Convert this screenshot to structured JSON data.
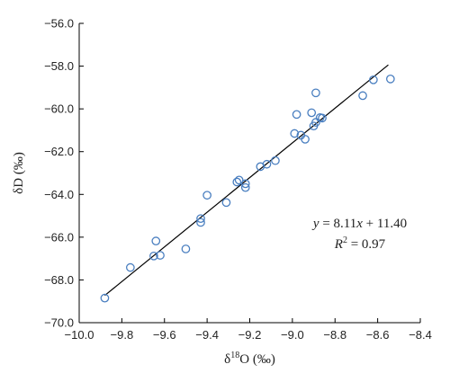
{
  "chart_data": {
    "type": "scatter",
    "title": "",
    "xlabel": {
      "prefix": "δ",
      "sup": "18",
      "suffix": "O (‰)"
    },
    "ylabel": "δD (‰)",
    "xlim": [
      -10.0,
      -8.4
    ],
    "ylim": [
      -70.0,
      -56.0
    ],
    "x_ticks": [
      -10.0,
      -9.8,
      -9.6,
      -9.4,
      -9.2,
      -9.0,
      -8.8,
      -8.6,
      -8.4
    ],
    "y_ticks": [
      -70.0,
      -68.0,
      -66.0,
      -64.0,
      -62.0,
      -60.0,
      -58.0,
      -56.0
    ],
    "x_tick_labels": [
      "−10.0",
      "−9.8",
      "−9.6",
      "−9.4",
      "−9.2",
      "−9.0",
      "−8.8",
      "−8.6",
      "−8.4"
    ],
    "y_tick_labels": [
      "−70.0",
      "−68.0",
      "−66.0",
      "−64.0",
      "−62.0",
      "−60.0",
      "−58.0",
      "−56.0"
    ],
    "grid": false,
    "marker_color": "#4a7fc0",
    "line_color": "#000000",
    "points": [
      {
        "x": -9.88,
        "y": -68.85
      },
      {
        "x": -9.76,
        "y": -67.42
      },
      {
        "x": -9.65,
        "y": -66.88
      },
      {
        "x": -9.62,
        "y": -66.85
      },
      {
        "x": -9.64,
        "y": -66.18
      },
      {
        "x": -9.5,
        "y": -66.55
      },
      {
        "x": -9.43,
        "y": -65.13
      },
      {
        "x": -9.43,
        "y": -65.31
      },
      {
        "x": -9.4,
        "y": -64.04
      },
      {
        "x": -9.31,
        "y": -64.38
      },
      {
        "x": -9.26,
        "y": -63.42
      },
      {
        "x": -9.25,
        "y": -63.33
      },
      {
        "x": -9.22,
        "y": -63.5
      },
      {
        "x": -9.22,
        "y": -63.68
      },
      {
        "x": -9.15,
        "y": -62.7
      },
      {
        "x": -9.12,
        "y": -62.59
      },
      {
        "x": -9.08,
        "y": -62.42
      },
      {
        "x": -8.99,
        "y": -61.15
      },
      {
        "x": -8.96,
        "y": -61.23
      },
      {
        "x": -8.94,
        "y": -61.42
      },
      {
        "x": -8.98,
        "y": -60.26
      },
      {
        "x": -8.91,
        "y": -60.18
      },
      {
        "x": -8.9,
        "y": -60.8
      },
      {
        "x": -8.89,
        "y": -60.63
      },
      {
        "x": -8.87,
        "y": -60.41
      },
      {
        "x": -8.86,
        "y": -60.43
      },
      {
        "x": -8.89,
        "y": -59.25
      },
      {
        "x": -8.67,
        "y": -59.38
      },
      {
        "x": -8.62,
        "y": -58.64
      },
      {
        "x": -8.54,
        "y": -58.6
      }
    ],
    "trendline": {
      "slope": 8.11,
      "intercept": 11.4,
      "x_range": [
        -9.88,
        -8.55
      ]
    },
    "annotation": {
      "equation": {
        "y": "y",
        "eq": " = 8.11",
        "x": "x",
        "rest": " + 11.40"
      },
      "r2": {
        "r": "R",
        "sup": "2",
        "rest": " = 0.97"
      }
    }
  }
}
